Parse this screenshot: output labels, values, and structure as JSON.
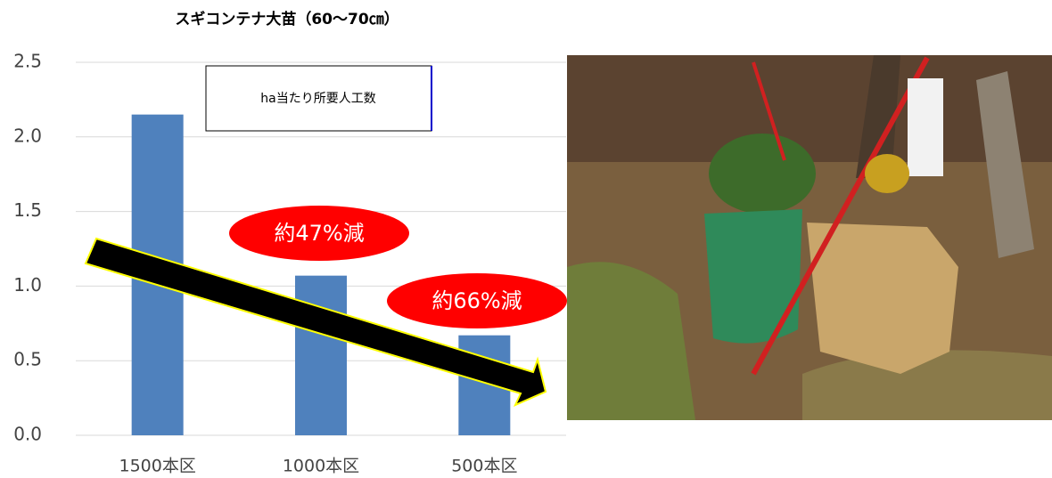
{
  "chart_data": {
    "type": "bar",
    "title": "スギコンテナ大苗（60～70㎝）",
    "categories": [
      "1500本区",
      "1000本区",
      "500本区"
    ],
    "values": [
      2.15,
      1.07,
      0.67
    ],
    "color": "#4f81bd",
    "ylim": [
      0,
      2.5
    ],
    "yticks": [
      {
        "value": 0,
        "label": "0.0"
      },
      {
        "value": 0.5,
        "label": "0.5"
      },
      {
        "value": 1,
        "label": "1.0"
      },
      {
        "value": 1.5,
        "label": "1.5"
      },
      {
        "value": 2,
        "label": "2.0"
      },
      {
        "value": 2.5,
        "label": "2.5"
      }
    ],
    "grid": true,
    "annotations": [
      "ha当たり所要人工数",
      "約47%減",
      "約66%減"
    ]
  }
}
